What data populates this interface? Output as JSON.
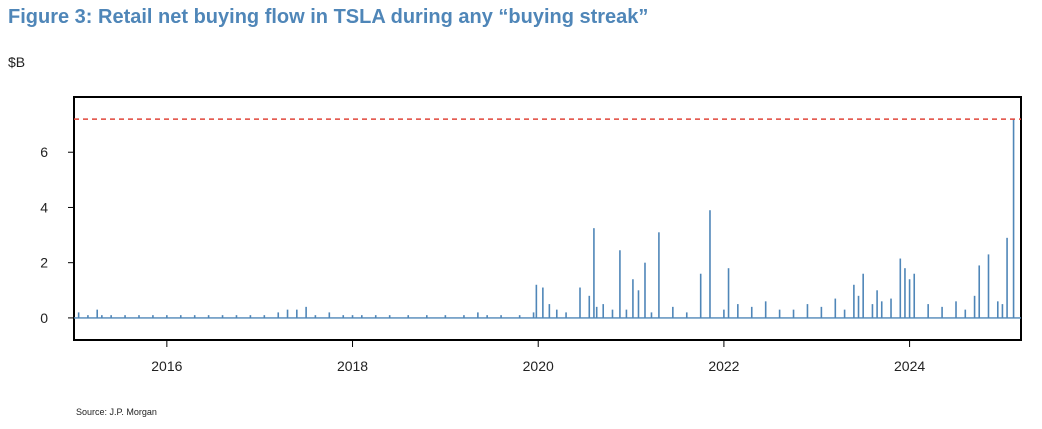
{
  "figure": {
    "title": "Figure 3: Retail net buying flow in TSLA during any “buying streak”",
    "unit_label": "$B",
    "source": "Source: J.P. Morgan"
  },
  "colors": {
    "bar": "#4f86b8",
    "reference_line": "#e0463a",
    "title": "#4f86b8",
    "axis": "#000000"
  },
  "chart_data": {
    "type": "bar",
    "title": "Figure 3: Retail net buying flow in TSLA during any “buying streak”",
    "xlabel": "",
    "ylabel": "$B",
    "xlim": [
      2015.0,
      2025.2
    ],
    "ylim": [
      -0.8,
      8.0
    ],
    "x_ticks": [
      2016,
      2018,
      2020,
      2022,
      2024
    ],
    "x_tick_labels": [
      "2016",
      "2018",
      "2020",
      "2022",
      "2024"
    ],
    "y_ticks": [
      0,
      2,
      4,
      6
    ],
    "y_tick_labels": [
      "0",
      "2",
      "4",
      "6"
    ],
    "grid": false,
    "legend": "none",
    "reference_line": {
      "y": 7.2,
      "style": "dashed"
    },
    "x": [
      2015.05,
      2015.15,
      2015.25,
      2015.3,
      2015.4,
      2015.55,
      2015.7,
      2015.85,
      2016.0,
      2016.15,
      2016.3,
      2016.45,
      2016.6,
      2016.75,
      2016.9,
      2017.05,
      2017.2,
      2017.3,
      2017.4,
      2017.5,
      2017.6,
      2017.75,
      2017.9,
      2018.0,
      2018.1,
      2018.25,
      2018.4,
      2018.6,
      2018.8,
      2019.0,
      2019.2,
      2019.35,
      2019.45,
      2019.6,
      2019.8,
      2019.95,
      2019.98,
      2020.05,
      2020.12,
      2020.2,
      2020.3,
      2020.45,
      2020.55,
      2020.6,
      2020.63,
      2020.7,
      2020.8,
      2020.88,
      2020.95,
      2021.02,
      2021.08,
      2021.15,
      2021.22,
      2021.3,
      2021.45,
      2021.6,
      2021.75,
      2021.85,
      2022.0,
      2022.05,
      2022.15,
      2022.3,
      2022.45,
      2022.6,
      2022.75,
      2022.9,
      2023.05,
      2023.2,
      2023.3,
      2023.4,
      2023.45,
      2023.5,
      2023.6,
      2023.65,
      2023.7,
      2023.8,
      2023.9,
      2023.95,
      2024.0,
      2024.05,
      2024.2,
      2024.35,
      2024.5,
      2024.6,
      2024.7,
      2024.75,
      2024.85,
      2024.95,
      2025.0,
      2025.05,
      2025.12
    ],
    "values": [
      0.2,
      0.1,
      0.3,
      0.1,
      0.1,
      0.1,
      0.1,
      0.1,
      0.1,
      0.1,
      0.1,
      0.1,
      0.1,
      0.1,
      0.1,
      0.1,
      0.2,
      0.3,
      0.3,
      0.4,
      0.1,
      0.2,
      0.1,
      0.1,
      0.1,
      0.1,
      0.1,
      0.1,
      0.1,
      0.1,
      0.1,
      0.2,
      0.1,
      0.1,
      0.1,
      0.2,
      1.2,
      1.1,
      0.5,
      0.3,
      0.2,
      1.1,
      0.8,
      3.25,
      0.4,
      0.5,
      0.3,
      2.45,
      0.3,
      1.4,
      1.0,
      2.0,
      0.2,
      3.1,
      0.4,
      0.2,
      1.6,
      3.9,
      0.3,
      1.8,
      0.5,
      0.4,
      0.6,
      0.3,
      0.3,
      0.5,
      0.4,
      0.7,
      0.3,
      1.2,
      0.8,
      1.6,
      0.5,
      1.0,
      0.6,
      0.7,
      2.15,
      1.8,
      1.4,
      1.6,
      0.5,
      0.4,
      0.6,
      0.3,
      0.8,
      1.9,
      2.3,
      0.6,
      0.5,
      2.9,
      7.2
    ]
  }
}
